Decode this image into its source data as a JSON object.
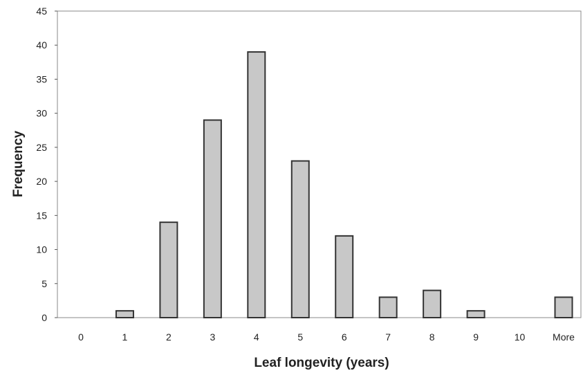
{
  "chart_data": {
    "type": "bar",
    "categories": [
      "0",
      "1",
      "2",
      "3",
      "4",
      "5",
      "6",
      "7",
      "8",
      "9",
      "10",
      "More"
    ],
    "values": [
      0,
      1,
      14,
      29,
      39,
      23,
      12,
      3,
      4,
      1,
      0,
      3
    ],
    "title": "",
    "xlabel": "Leaf longevity (years)",
    "ylabel": "Frequency",
    "ylim": [
      0,
      45
    ],
    "yticks": [
      "0",
      "5",
      "10",
      "15",
      "20",
      "25",
      "30",
      "35",
      "40",
      "45"
    ],
    "grid": false,
    "legend": "none",
    "bar_color": "#c8c8c8",
    "bar_edge_color": "#333333"
  }
}
